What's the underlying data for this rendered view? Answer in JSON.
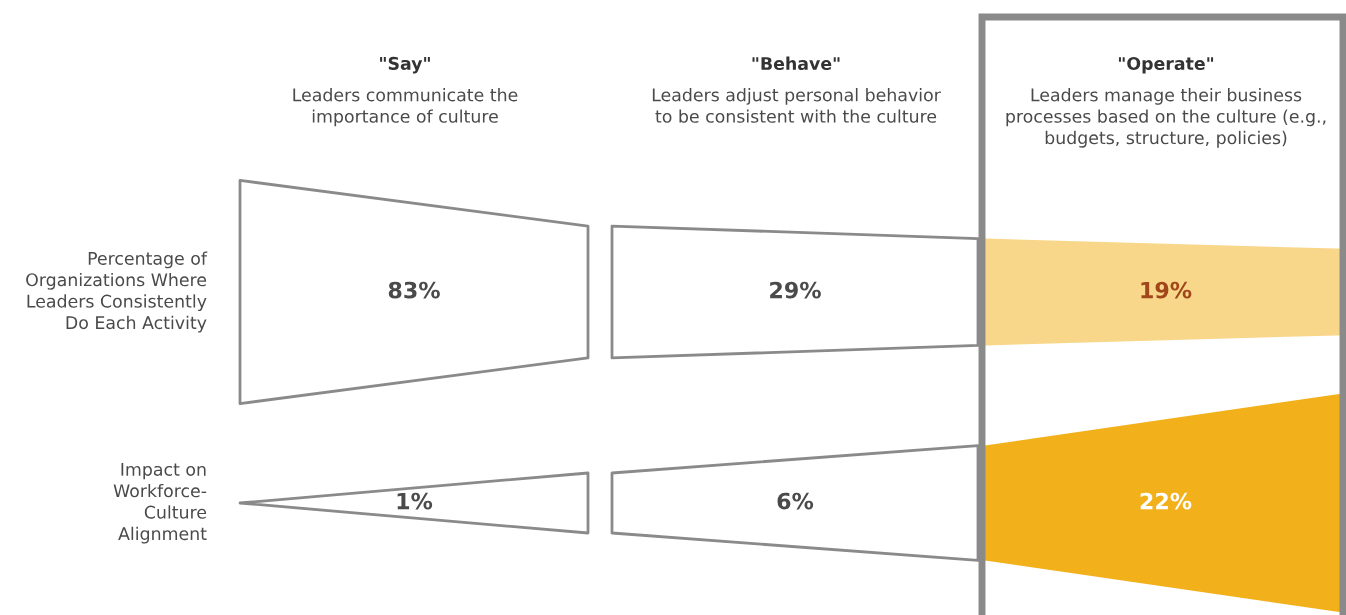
{
  "chart_data": {
    "type": "other",
    "categories": [
      "\"Say\"",
      "\"Behave\"",
      "\"Operate\""
    ],
    "annotations": [
      "Leaders communicate the\nimportance of culture",
      "Leaders adjust personal behavior\nto be consistent with the culture",
      "Leaders manage their business\nprocesses based on the culture (e.g.,\nbudgets, structure, policies)"
    ],
    "series": [
      {
        "name": "Percentage of\nOrganizations Where\nLeaders Consistently\nDo Each Activity",
        "colors": [
          "#ffffff",
          "#ffffff",
          "#f8d78a"
        ],
        "values": [
          83,
          29,
          19
        ],
        "value_labels": [
          "83%",
          "29%",
          "19%"
        ]
      },
      {
        "name": "Impact on\nWorkforce-\nCulture\nAlignment",
        "colors": [
          "#ffffff",
          "#ffffff",
          "#f2b11b"
        ],
        "values": [
          1,
          6,
          22
        ],
        "value_labels": [
          "1%",
          "6%",
          "22%"
        ]
      }
    ]
  }
}
